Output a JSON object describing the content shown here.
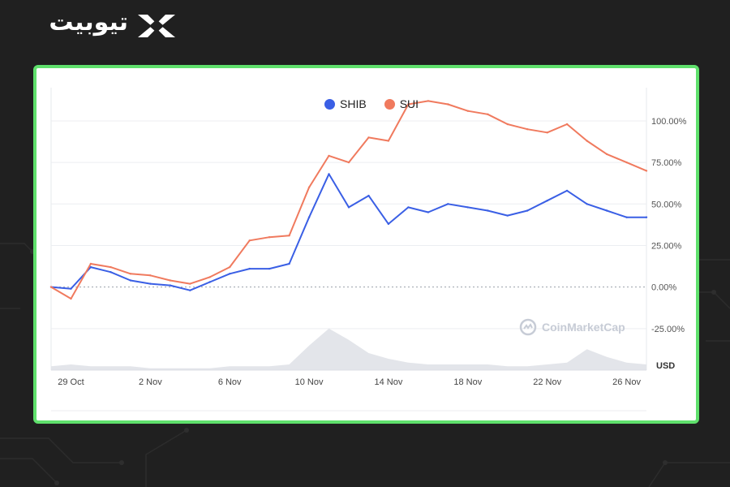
{
  "brand": {
    "name": "تیوبیت"
  },
  "watermark": {
    "text": "CoinMarketCap"
  },
  "colors": {
    "shib": "#3a5fe5",
    "sui": "#f07a5e",
    "frame": "#5fe06c",
    "background": "#202020"
  },
  "chart_data": {
    "type": "line",
    "x": [
      "28 Oct",
      "29 Oct",
      "30 Oct",
      "31 Oct",
      "1 Nov",
      "2 Nov",
      "3 Nov",
      "4 Nov",
      "5 Nov",
      "6 Nov",
      "7 Nov",
      "8 Nov",
      "9 Nov",
      "10 Nov",
      "11 Nov",
      "12 Nov",
      "13 Nov",
      "14 Nov",
      "15 Nov",
      "16 Nov",
      "17 Nov",
      "18 Nov",
      "19 Nov",
      "20 Nov",
      "21 Nov",
      "22 Nov",
      "23 Nov",
      "24 Nov",
      "25 Nov",
      "26 Nov",
      "27 Nov"
    ],
    "x_ticks": [
      "29 Oct",
      "2 Nov",
      "6 Nov",
      "10 Nov",
      "14 Nov",
      "18 Nov",
      "22 Nov",
      "26 Nov"
    ],
    "series": [
      {
        "name": "SHIB",
        "color": "#3a5fe5",
        "values": [
          0,
          -1,
          12,
          9,
          4,
          2,
          1,
          -2,
          3,
          8,
          11,
          11,
          14,
          42,
          68,
          48,
          55,
          38,
          48,
          45,
          50,
          48,
          46,
          43,
          46,
          52,
          58,
          50,
          46,
          42,
          42
        ]
      },
      {
        "name": "SUI",
        "color": "#f07a5e",
        "values": [
          0,
          -7,
          14,
          12,
          8,
          7,
          4,
          2,
          6,
          12,
          28,
          30,
          31,
          60,
          79,
          75,
          90,
          88,
          110,
          112,
          110,
          106,
          104,
          98,
          95,
          93,
          98,
          88,
          80,
          75,
          70
        ]
      }
    ],
    "volume": [
      2,
      3,
      2,
      2,
      2,
      1,
      1,
      1,
      1,
      2,
      2,
      2,
      3,
      13,
      22,
      16,
      9,
      6,
      4,
      3,
      3,
      3,
      3,
      2,
      2,
      3,
      4,
      11,
      7,
      4,
      3
    ],
    "y_ticks": [
      "100.00%",
      "75.00%",
      "50.00%",
      "25.00%",
      "0.00%",
      "-25.00%"
    ],
    "y_tick_values": [
      100,
      75,
      50,
      25,
      0,
      -25
    ],
    "ylim": [
      -50,
      120
    ],
    "y_unit": "USD",
    "legend_position": "top-center",
    "grid": true
  }
}
